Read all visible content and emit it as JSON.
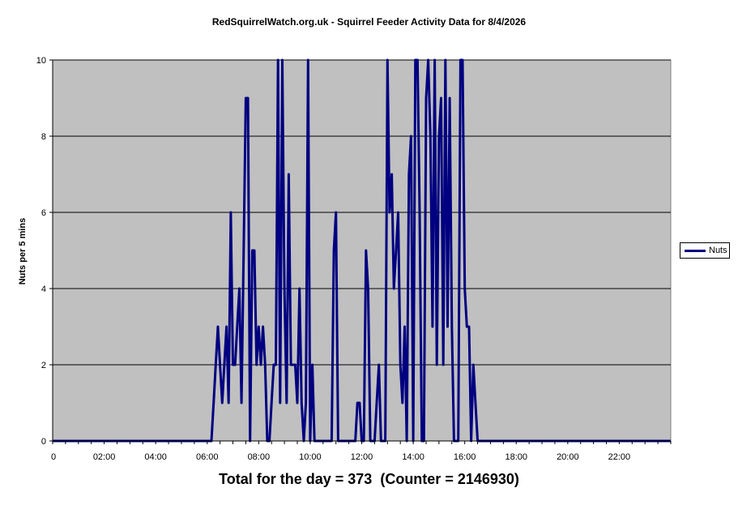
{
  "chart_data": {
    "type": "line",
    "title": "RedSquirrelWatch.org.uk - Squirrel Feeder Activity Data for 8/4/2026",
    "xlabel": "",
    "ylabel": "Nuts per 5 mins",
    "xlim": [
      "00:00",
      "24:00"
    ],
    "ylim": [
      0,
      10
    ],
    "y_ticks": [
      "0",
      "2",
      "4",
      "6",
      "8",
      "10"
    ],
    "x_ticks": [
      "0",
      "02:00",
      "04:00",
      "06:00",
      "08:00",
      "10:00",
      "12:00",
      "14:00",
      "16:00",
      "18:00",
      "20:00",
      "22:00"
    ],
    "grid": "horizontal",
    "legend_position": "right",
    "background_color": "#C0C0C0",
    "series_color": "#000080",
    "series": [
      {
        "name": "Nuts",
        "points": [
          [
            "00:00",
            0
          ],
          [
            "06:10",
            0
          ],
          [
            "06:15",
            1
          ],
          [
            "06:20",
            2
          ],
          [
            "06:25",
            3
          ],
          [
            "06:30",
            2
          ],
          [
            "06:35",
            1
          ],
          [
            "06:40",
            2
          ],
          [
            "06:45",
            3
          ],
          [
            "06:50",
            1
          ],
          [
            "06:55",
            6
          ],
          [
            "07:00",
            2
          ],
          [
            "07:05",
            2
          ],
          [
            "07:10",
            3
          ],
          [
            "07:15",
            4
          ],
          [
            "07:20",
            1
          ],
          [
            "07:25",
            5
          ],
          [
            "07:30",
            9
          ],
          [
            "07:35",
            9
          ],
          [
            "07:40",
            0
          ],
          [
            "07:45",
            5
          ],
          [
            "07:50",
            5
          ],
          [
            "07:55",
            2
          ],
          [
            "08:00",
            3
          ],
          [
            "08:05",
            2
          ],
          [
            "08:10",
            3
          ],
          [
            "08:15",
            2
          ],
          [
            "08:20",
            0
          ],
          [
            "08:25",
            0
          ],
          [
            "08:30",
            1
          ],
          [
            "08:35",
            2
          ],
          [
            "08:40",
            2
          ],
          [
            "08:45",
            10
          ],
          [
            "08:50",
            1
          ],
          [
            "08:55",
            10
          ],
          [
            "09:00",
            4
          ],
          [
            "09:05",
            1
          ],
          [
            "09:10",
            7
          ],
          [
            "09:15",
            2
          ],
          [
            "09:20",
            2
          ],
          [
            "09:25",
            2
          ],
          [
            "09:30",
            1
          ],
          [
            "09:35",
            4
          ],
          [
            "09:40",
            1
          ],
          [
            "09:45",
            0
          ],
          [
            "09:50",
            1
          ],
          [
            "09:55",
            10
          ],
          [
            "10:00",
            0
          ],
          [
            "10:05",
            2
          ],
          [
            "10:10",
            0
          ],
          [
            "10:15",
            0
          ],
          [
            "10:20",
            0
          ],
          [
            "10:25",
            0
          ],
          [
            "10:30",
            0
          ],
          [
            "10:35",
            0
          ],
          [
            "10:40",
            0
          ],
          [
            "10:45",
            0
          ],
          [
            "10:50",
            0
          ],
          [
            "10:55",
            5
          ],
          [
            "11:00",
            6
          ],
          [
            "11:05",
            0
          ],
          [
            "11:10",
            0
          ],
          [
            "11:15",
            0
          ],
          [
            "11:20",
            0
          ],
          [
            "11:25",
            0
          ],
          [
            "11:30",
            0
          ],
          [
            "11:35",
            0
          ],
          [
            "11:40",
            0
          ],
          [
            "11:45",
            0
          ],
          [
            "11:50",
            1
          ],
          [
            "11:55",
            1
          ],
          [
            "12:00",
            0
          ],
          [
            "12:05",
            0
          ],
          [
            "12:10",
            5
          ],
          [
            "12:15",
            4
          ],
          [
            "12:20",
            0
          ],
          [
            "12:25",
            0
          ],
          [
            "12:30",
            0
          ],
          [
            "12:35",
            1
          ],
          [
            "12:40",
            2
          ],
          [
            "12:45",
            0
          ],
          [
            "12:50",
            0
          ],
          [
            "12:55",
            0
          ],
          [
            "13:00",
            10
          ],
          [
            "13:05",
            6
          ],
          [
            "13:10",
            7
          ],
          [
            "13:15",
            4
          ],
          [
            "13:20",
            5
          ],
          [
            "13:25",
            6
          ],
          [
            "13:30",
            2
          ],
          [
            "13:35",
            1
          ],
          [
            "13:40",
            3
          ],
          [
            "13:45",
            0
          ],
          [
            "13:50",
            7
          ],
          [
            "13:55",
            8
          ],
          [
            "14:00",
            0
          ],
          [
            "14:05",
            10
          ],
          [
            "14:10",
            10
          ],
          [
            "14:15",
            6
          ],
          [
            "14:20",
            0
          ],
          [
            "14:25",
            0
          ],
          [
            "14:30",
            9
          ],
          [
            "14:35",
            10
          ],
          [
            "14:40",
            8
          ],
          [
            "14:45",
            3
          ],
          [
            "14:50",
            10
          ],
          [
            "14:55",
            2
          ],
          [
            "15:00",
            8
          ],
          [
            "15:05",
            9
          ],
          [
            "15:10",
            2
          ],
          [
            "15:15",
            10
          ],
          [
            "15:20",
            3
          ],
          [
            "15:25",
            9
          ],
          [
            "15:30",
            3
          ],
          [
            "15:35",
            0
          ],
          [
            "15:40",
            0
          ],
          [
            "15:45",
            0
          ],
          [
            "15:50",
            10
          ],
          [
            "15:55",
            10
          ],
          [
            "16:00",
            4
          ],
          [
            "16:05",
            3
          ],
          [
            "16:10",
            3
          ],
          [
            "16:15",
            0
          ],
          [
            "16:20",
            2
          ],
          [
            "16:25",
            1
          ],
          [
            "16:30",
            0
          ],
          [
            "16:35",
            0
          ],
          [
            "24:00",
            0
          ]
        ]
      }
    ]
  },
  "footer": {
    "total_text": "Total for the day = 373",
    "counter_text": "(Counter = 2146930)"
  }
}
